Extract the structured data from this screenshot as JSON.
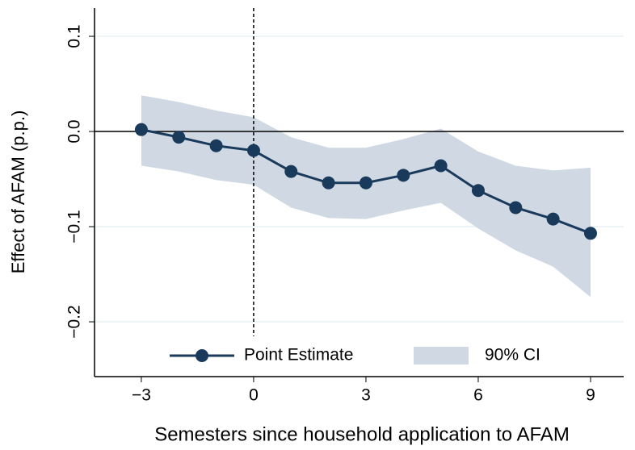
{
  "chart_data": {
    "type": "line",
    "x_label": "Semesters since household application to AFAM",
    "y_label": "Effect of AFAM (p.p.)",
    "x": [
      -3,
      -2,
      -1,
      0,
      1,
      2,
      3,
      4,
      5,
      6,
      7,
      8,
      9
    ],
    "series": [
      {
        "name": "Point Estimate",
        "color": "#1a3a5c",
        "values": [
          0.002,
          -0.006,
          -0.015,
          -0.02,
          -0.042,
          -0.054,
          -0.054,
          -0.046,
          -0.036,
          -0.062,
          -0.08,
          -0.092,
          -0.107
        ]
      }
    ],
    "ci": {
      "name": "90% CI",
      "color": "#d0d9e3",
      "upper": [
        0.038,
        0.031,
        0.022,
        0.015,
        -0.006,
        -0.017,
        -0.017,
        -0.008,
        0.003,
        -0.021,
        -0.036,
        -0.041,
        -0.038
      ],
      "lower": [
        -0.036,
        -0.042,
        -0.051,
        -0.056,
        -0.08,
        -0.091,
        -0.092,
        -0.083,
        -0.075,
        -0.102,
        -0.125,
        -0.142,
        -0.174
      ]
    },
    "xlim": [
      -4.25,
      9.885
    ],
    "ylim": [
      -0.2576,
      0.1297
    ],
    "xticks": [
      {
        "value": -3,
        "label": "−3"
      },
      0,
      3,
      6,
      9
    ],
    "yticks": [
      {
        "value": -0.2,
        "label": "−0.2"
      },
      {
        "value": -0.1,
        "label": "−0.1"
      },
      {
        "value": 0,
        "label": "0.0"
      },
      0.1
    ],
    "reference_lines": {
      "x": 0,
      "y": 0
    },
    "grid": true,
    "legend": "bottom"
  }
}
